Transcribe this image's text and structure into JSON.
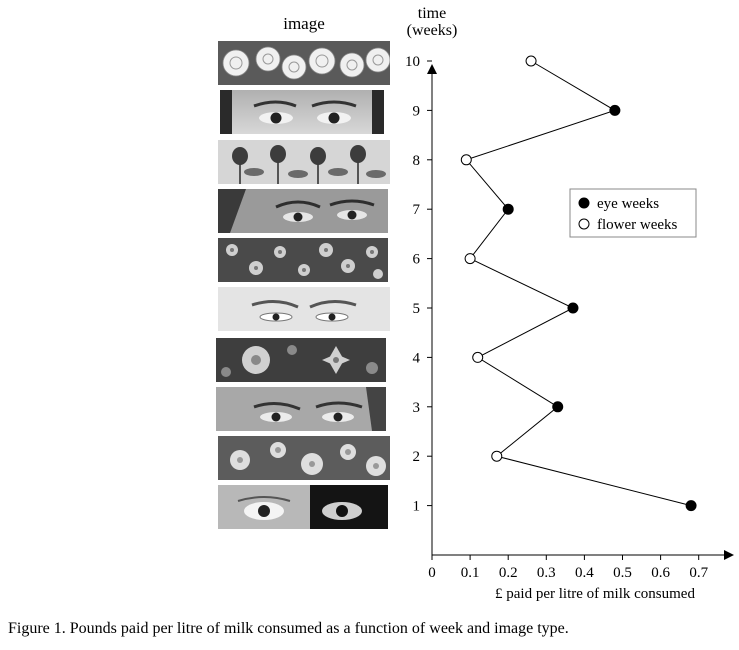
{
  "image_column_header": "image",
  "image_strips": [
    {
      "week": 10,
      "image_type": "flower",
      "depicts": "white roses"
    },
    {
      "week": 9,
      "image_type": "eye",
      "depicts": "eyes"
    },
    {
      "week": 8,
      "image_type": "flower",
      "depicts": "tulips"
    },
    {
      "week": 7,
      "image_type": "eye",
      "depicts": "eyes"
    },
    {
      "week": 6,
      "image_type": "flower",
      "depicts": "flowers"
    },
    {
      "week": 5,
      "image_type": "eye",
      "depicts": "eyes"
    },
    {
      "week": 4,
      "image_type": "flower",
      "depicts": "lilies"
    },
    {
      "week": 3,
      "image_type": "eye",
      "depicts": "eyes"
    },
    {
      "week": 2,
      "image_type": "flower",
      "depicts": "flowers"
    },
    {
      "week": 1,
      "image_type": "eye",
      "depicts": "eyes"
    }
  ],
  "caption": "Figure 1. Pounds paid per litre of milk consumed as a function of week and image type.",
  "colors": {
    "axis": "#000000",
    "eye_marker": "#000000",
    "flower_marker": "#ffffff"
  },
  "chart_data": {
    "type": "line",
    "orientation": "horizontal",
    "xlabel": "£ paid per litre of milk consumed",
    "ylabel_lines": [
      "time",
      "(weeks)"
    ],
    "xlim": [
      0,
      0.75
    ],
    "ylim": [
      0,
      10.6
    ],
    "x_ticks": [
      "0",
      "0.1",
      "0.2",
      "0.3",
      "0.4",
      "0.5",
      "0.6",
      "0.7"
    ],
    "y_ticks": [
      "1",
      "2",
      "3",
      "4",
      "5",
      "6",
      "7",
      "8",
      "9",
      "10"
    ],
    "grid": false,
    "legend": {
      "placement": "right",
      "entries": [
        "eye weeks",
        "flower weeks"
      ]
    },
    "points": [
      {
        "week": 1,
        "value": 0.68,
        "type": "eye"
      },
      {
        "week": 2,
        "value": 0.17,
        "type": "flower"
      },
      {
        "week": 3,
        "value": 0.33,
        "type": "eye"
      },
      {
        "week": 4,
        "value": 0.12,
        "type": "flower"
      },
      {
        "week": 5,
        "value": 0.37,
        "type": "eye"
      },
      {
        "week": 6,
        "value": 0.1,
        "type": "flower"
      },
      {
        "week": 7,
        "value": 0.2,
        "type": "eye"
      },
      {
        "week": 8,
        "value": 0.09,
        "type": "flower"
      },
      {
        "week": 9,
        "value": 0.48,
        "type": "eye"
      },
      {
        "week": 10,
        "value": 0.26,
        "type": "flower"
      }
    ]
  }
}
